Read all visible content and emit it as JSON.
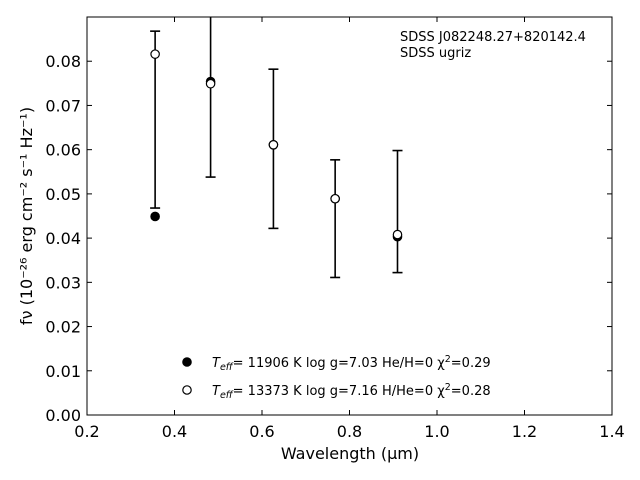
{
  "chart_data": {
    "type": "scatter",
    "xlabel": "Wavelength (μm)",
    "ylabel": "fν (10⁻²⁶ erg cm⁻² s⁻¹ Hz⁻¹)",
    "xlim": [
      0.2,
      1.4
    ],
    "ylim": [
      0.0,
      0.09
    ],
    "x_ticks": [
      0.2,
      0.4,
      0.6,
      0.8,
      1.0,
      1.2,
      1.4
    ],
    "x_tick_labels": [
      "0.2",
      "0.4",
      "0.6",
      "0.8",
      "1.0",
      "1.2",
      "1.4"
    ],
    "y_ticks": [
      0.0,
      0.01,
      0.02,
      0.03,
      0.04,
      0.05,
      0.06,
      0.07,
      0.08
    ],
    "y_tick_labels": [
      "0.00",
      "0.01",
      "0.02",
      "0.03",
      "0.04",
      "0.05",
      "0.06",
      "0.07",
      "0.08"
    ],
    "grid": false,
    "legend_position": "bottom-center",
    "annotations": [
      "SDSS J082248.27+820142.4",
      "SDSS ugriz"
    ],
    "observed": {
      "x": [
        0.3557,
        0.4825,
        0.6261,
        0.7672,
        0.9097
      ],
      "y": [
        0.0668,
        0.0758,
        0.0602,
        0.0444,
        0.046
      ],
      "yerr": [
        0.02,
        0.022,
        0.018,
        0.0133,
        0.0138
      ]
    },
    "series": [
      {
        "marker": "filled-circle",
        "color": "#000000",
        "label_parts": [
          "T",
          "eff",
          "= 11906 K  log g=7.03  He/H=0  χ",
          "2",
          "=0.29"
        ],
        "x": [
          0.3557,
          0.4825,
          0.6261,
          0.7672,
          0.9097
        ],
        "y": [
          0.0449,
          0.0754,
          0.0611,
          0.0489,
          0.0403
        ]
      },
      {
        "marker": "open-circle",
        "color": "#000000",
        "label_parts": [
          "T",
          "eff",
          "= 13373 K  log g=7.16  H/He=0  χ",
          "2",
          "=0.28"
        ],
        "x": [
          0.3557,
          0.4825,
          0.6261,
          0.7672,
          0.9097
        ],
        "y": [
          0.0816,
          0.0749,
          0.0611,
          0.0489,
          0.0408
        ]
      }
    ]
  }
}
